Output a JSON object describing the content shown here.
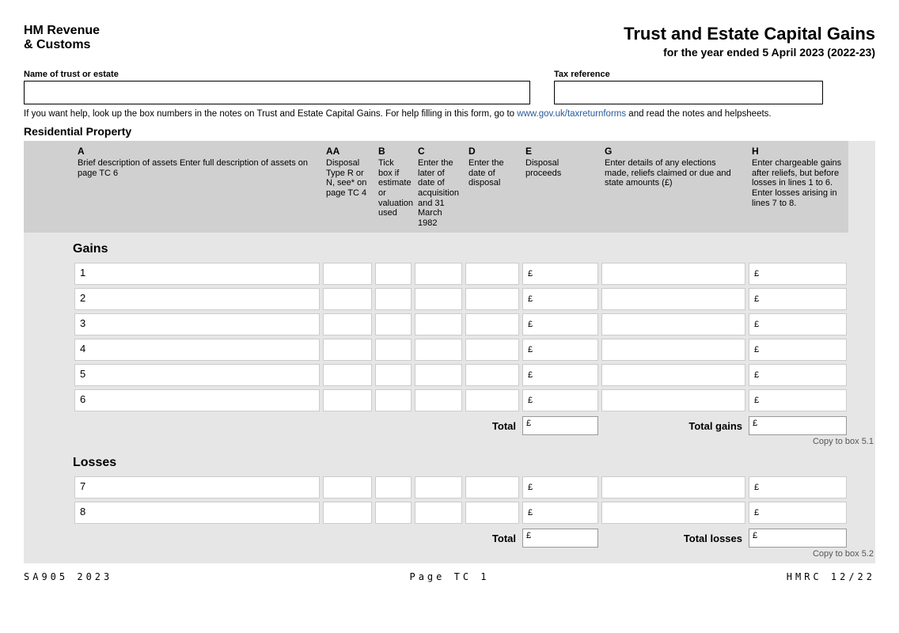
{
  "header": {
    "org_line1": "HM Revenue",
    "org_line2": "& Customs",
    "title": "Trust and Estate Capital Gains",
    "subtitle": "for the year ended 5 April 2023 (2022-23)"
  },
  "fields": {
    "name_label": "Name of trust or estate",
    "ref_label": "Tax reference",
    "name_value": "",
    "ref_value": ""
  },
  "help": {
    "pre": "If you want help, look up the box numbers in the notes on Trust and Estate Capital Gains. For help filling in this form, go to ",
    "url": "www.gov.uk/taxreturnforms",
    "post": " and read the notes and helpsheets."
  },
  "section": "Residential Property",
  "columns": {
    "A": {
      "letter": "A",
      "desc": "Brief description of assets\nEnter full description of assets on page TC 6"
    },
    "AA": {
      "letter": "AA",
      "desc": "Disposal Type R or N, see* on page TC 4"
    },
    "B": {
      "letter": "B",
      "desc": "Tick box if estimate or valuation used"
    },
    "C": {
      "letter": "C",
      "desc": "Enter the later of date of acquisition and 31 March 1982"
    },
    "D": {
      "letter": "D",
      "desc": "Enter the date of disposal"
    },
    "E": {
      "letter": "E",
      "desc": "Disposal proceeds"
    },
    "G": {
      "letter": "G",
      "desc": "Enter details of any elections made, reliefs claimed or due and state amounts (£)"
    },
    "H": {
      "letter": "H",
      "desc": "Enter chargeable gains after reliefs, but before losses in lines 1 to 6. Enter losses arising in lines 7 to 8."
    }
  },
  "gains": {
    "label": "Gains",
    "rows": [
      "1",
      "2",
      "3",
      "4",
      "5",
      "6"
    ],
    "total_label": "Total",
    "total_e": "",
    "total_gains_label": "Total gains",
    "total_h": "",
    "copy_note": "Copy to box 5.1"
  },
  "losses": {
    "label": "Losses",
    "rows": [
      "7",
      "8"
    ],
    "total_label": "Total",
    "total_e": "",
    "total_losses_label": "Total losses",
    "total_h": "",
    "copy_note": "Copy to box 5.2"
  },
  "currency": "£",
  "footer": {
    "left": "SA905 2023",
    "center": "Page TC 1",
    "right": "HMRC 12/22"
  }
}
